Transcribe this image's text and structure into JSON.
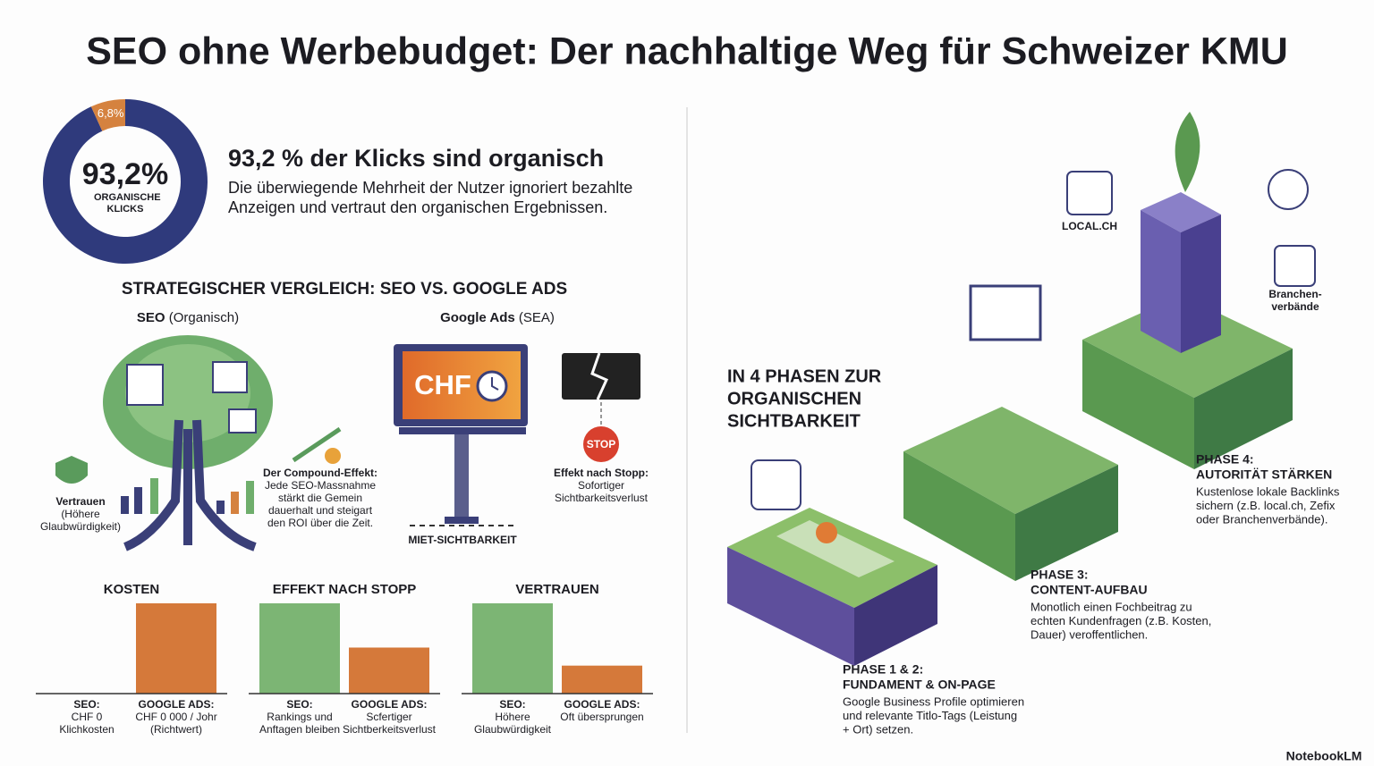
{
  "title": "SEO ohne Werbebudget: Der nachhaltige Weg für Schweizer KMU",
  "stat": {
    "heading": "93,2 % der Klicks sind organisch",
    "text": [
      "Die überwiegende Mehrheit der Nutzer ignoriert bezahlte",
      "Anzeigen und vertraut den organischen Ergebnissen."
    ]
  },
  "comparison": {
    "heading": "STRATEGISCHER VERGLEICH: SEO VS. GOOGLE ADS",
    "seo_label": "SEO",
    "seo_sub": "(Organisch)",
    "ads_label": "Google Ads",
    "ads_sub": "(SEA)",
    "trust": [
      "Vertrauen",
      "(Höhere",
      "Glaubwürdigkeit)"
    ],
    "compound": [
      "Der Compound-Effekt:",
      "Jede SEO-Massnahme",
      "stärkt die Gemein",
      "dauerhalt und steigart",
      "den ROI über die Zeit."
    ],
    "billboard": "CHF",
    "stop_sign": "STOP",
    "stop": [
      "Effekt nach Stopp:",
      "Sofortiger",
      "Sichtbarkeitsverlust"
    ],
    "rent": "MIET-SICHTBARKEIT"
  },
  "chart_data": [
    {
      "type": "pie",
      "values": [
        93.2,
        6.8
      ],
      "value_labels": [
        "93,2%",
        "6,8%"
      ],
      "categories": [
        "ORGANISCHE KLICKS",
        null
      ],
      "colors": [
        "#2f3a7c",
        "#d5823f"
      ]
    },
    {
      "type": "bar",
      "title": "KOSTEN",
      "categories": [
        "SEO:",
        "GOOGLE ADS:"
      ],
      "category_details": [
        [
          "CHF 0",
          "Klichkosten"
        ],
        [
          "CHF 0 000 / Johr",
          "(Richtwert)"
        ]
      ],
      "values": [
        0,
        100
      ],
      "colors": [
        "#7cb574",
        "#d5793a"
      ],
      "ylim": [
        0,
        100
      ]
    },
    {
      "type": "bar",
      "title": "EFFEKT NACH STOPP",
      "categories": [
        "SEO:",
        "GOOGLE ADS:"
      ],
      "category_details": [
        [
          "Rankings und",
          "Anftagen bleiben"
        ],
        [
          "Scfertiger",
          "Sichtberkeitsverlust"
        ]
      ],
      "values": [
        100,
        51
      ],
      "colors": [
        "#7cb574",
        "#d5793a"
      ],
      "ylim": [
        0,
        100
      ]
    },
    {
      "type": "bar",
      "title": "VERTRAUEN",
      "categories": [
        "SEO:",
        "GOOGLE ADS:"
      ],
      "category_details": [
        [
          "Höhere",
          "Glaubwürdigkeit"
        ],
        [
          "Oft übersprungen"
        ]
      ],
      "values": [
        100,
        31
      ],
      "colors": [
        "#7cb574",
        "#d5793a"
      ],
      "ylim": [
        0,
        100
      ]
    }
  ],
  "phases": {
    "heading": [
      "IN 4 PHASEN ZUR",
      "ORGANISCHEN",
      "SICHTBARKEIT"
    ],
    "items": [
      {
        "title": [
          "PHASE 4:",
          "AUTORITÄT STÄRKEN"
        ],
        "text": [
          "Kustenlose lokale Backlinks",
          "sichern (z.B. local.ch, Zefix",
          "oder Branchenverbände)."
        ]
      },
      {
        "title": [
          "PHASE 3:",
          "CONTENT-AUFBAU"
        ],
        "text": [
          "Monotlich einen Fochbeitrag zu",
          "echten Kundenfragen (z.B. Kosten,",
          "Dauer) veroffentlichen."
        ]
      },
      {
        "title": [
          "PHASE 1 & 2:",
          "FUNDAMENT & ON-PAGE"
        ],
        "text": [
          "Google Business Profile optimieren",
          "und relevante Titlo-Tags (Leistung",
          "+ Ort) setzen."
        ]
      }
    ],
    "local": "LOCAL.CH",
    "associations": [
      "Branchen-",
      "verbände"
    ]
  },
  "brand": "NotebookLM"
}
